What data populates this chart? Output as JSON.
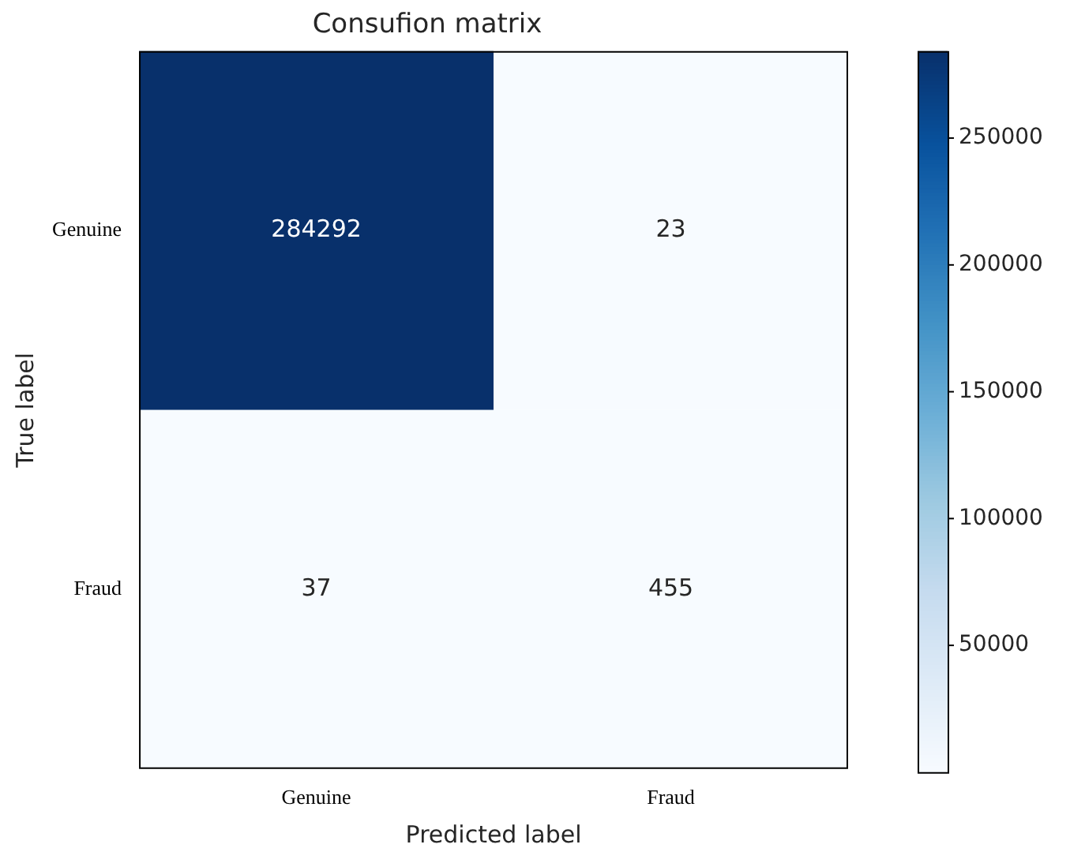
{
  "chart_data": {
    "type": "heatmap",
    "title": "Consufion matrix",
    "xlabel": "Predicted label",
    "ylabel": "True label",
    "categories": [
      "Genuine",
      "Fraud"
    ],
    "y_categories": [
      "Genuine",
      "Fraud"
    ],
    "cells": [
      [
        284292,
        23
      ],
      [
        37,
        455
      ]
    ],
    "data_labels": true,
    "clim": [
      23,
      284292
    ],
    "cticks": [
      50000,
      100000,
      150000,
      200000,
      250000
    ]
  }
}
